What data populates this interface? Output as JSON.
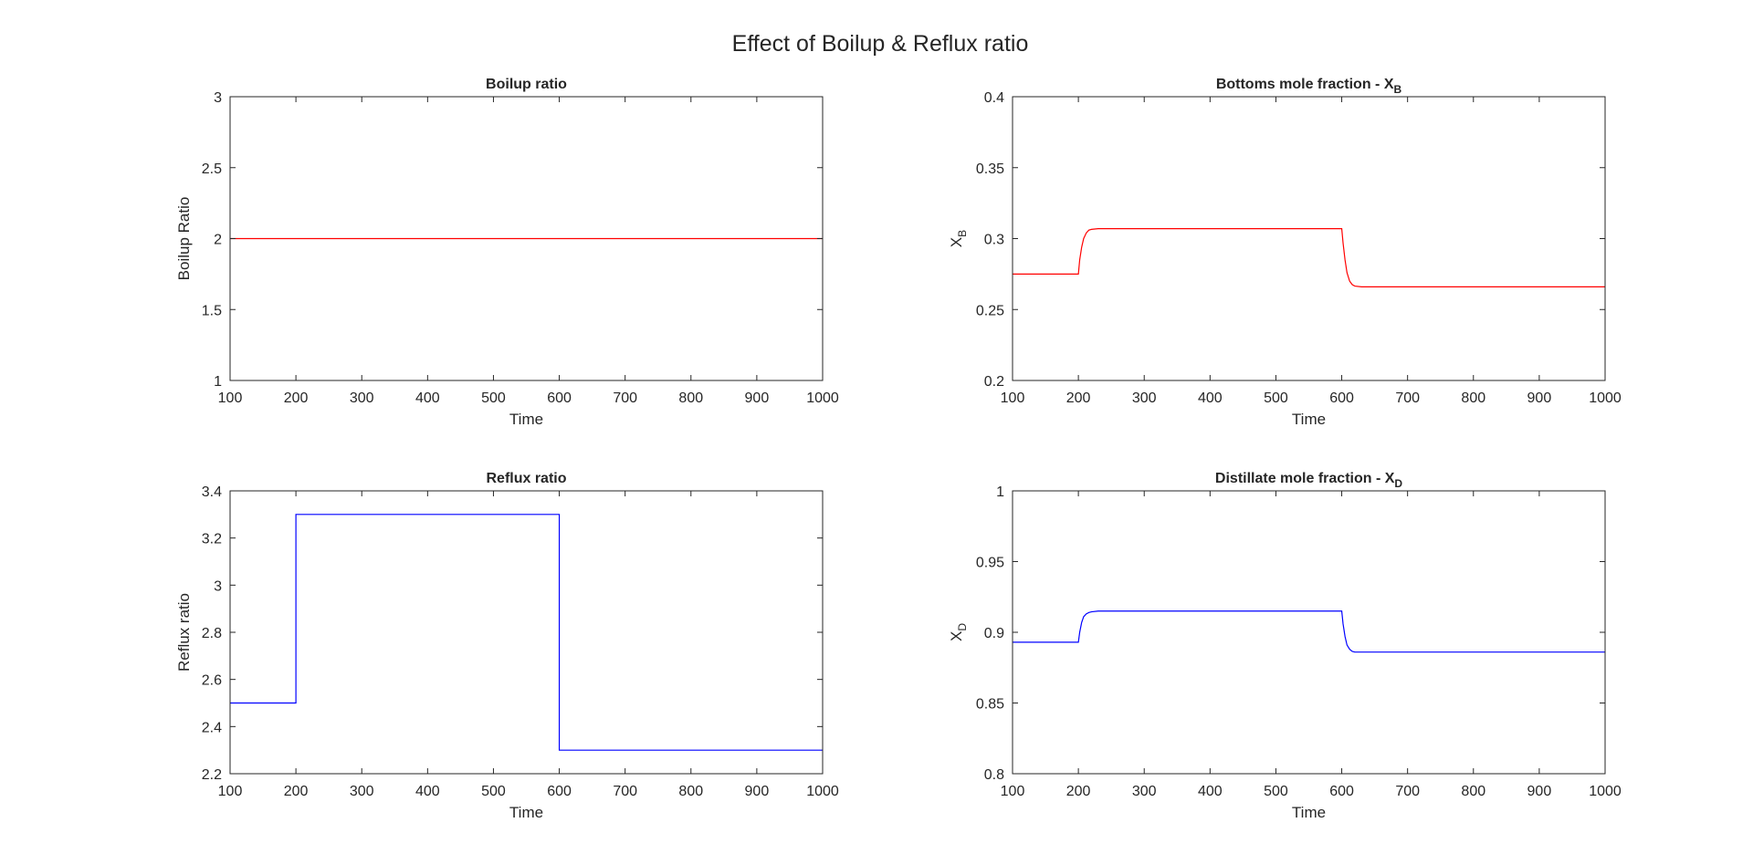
{
  "figure": {
    "suptitle": "Effect of Boilup & Reflux ratio"
  },
  "chart_data": [
    {
      "type": "line",
      "title": "Boilup ratio",
      "xlabel": "Time",
      "ylabel": "Boilup Ratio",
      "xlim": [
        100,
        1000
      ],
      "ylim": [
        1,
        3
      ],
      "xticks": [
        100,
        200,
        300,
        400,
        500,
        600,
        700,
        800,
        900,
        1000
      ],
      "yticks": [
        1,
        1.5,
        2,
        2.5,
        3
      ],
      "series": [
        {
          "color": "#ff0000",
          "x": [
            100,
            1000
          ],
          "y": [
            2,
            2
          ]
        }
      ]
    },
    {
      "type": "line",
      "title": "Bottoms mole fraction - X",
      "title_subscript": "B",
      "xlabel": "Time",
      "ylabel": "X",
      "ylabel_subscript": "B",
      "xlim": [
        100,
        1000
      ],
      "ylim": [
        0.2,
        0.4
      ],
      "xticks": [
        100,
        200,
        300,
        400,
        500,
        600,
        700,
        800,
        900,
        1000
      ],
      "yticks": [
        0.2,
        0.25,
        0.3,
        0.35,
        0.4
      ],
      "series": [
        {
          "color": "#ff0000",
          "x": [
            100,
            200,
            202,
            205,
            208,
            212,
            216,
            220,
            230,
            250,
            600,
            602,
            605,
            608,
            612,
            616,
            620,
            630,
            650,
            1000
          ],
          "y": [
            0.275,
            0.275,
            0.285,
            0.294,
            0.3,
            0.304,
            0.306,
            0.3065,
            0.307,
            0.307,
            0.307,
            0.297,
            0.285,
            0.276,
            0.27,
            0.2675,
            0.2665,
            0.266,
            0.266,
            0.266
          ]
        }
      ]
    },
    {
      "type": "line",
      "title": "Reflux ratio",
      "xlabel": "Time",
      "ylabel": "Reflux ratio",
      "xlim": [
        100,
        1000
      ],
      "ylim": [
        2.2,
        3.4
      ],
      "xticks": [
        100,
        200,
        300,
        400,
        500,
        600,
        700,
        800,
        900,
        1000
      ],
      "yticks": [
        2.2,
        2.4,
        2.6,
        2.8,
        3,
        3.2,
        3.4
      ],
      "series": [
        {
          "color": "#0000ff",
          "x": [
            100,
            200,
            200,
            600,
            600,
            1000
          ],
          "y": [
            2.5,
            2.5,
            3.3,
            3.3,
            2.3,
            2.3
          ]
        }
      ]
    },
    {
      "type": "line",
      "title": "Distillate mole fraction - X",
      "title_subscript": "D",
      "xlabel": "Time",
      "ylabel": "X",
      "ylabel_subscript": "D",
      "xlim": [
        100,
        1000
      ],
      "ylim": [
        0.8,
        1
      ],
      "xticks": [
        100,
        200,
        300,
        400,
        500,
        600,
        700,
        800,
        900,
        1000
      ],
      "yticks": [
        0.8,
        0.85,
        0.9,
        0.95,
        1
      ],
      "series": [
        {
          "color": "#0000ff",
          "x": [
            100,
            200,
            202,
            205,
            208,
            212,
            216,
            220,
            230,
            250,
            600,
            602,
            605,
            608,
            612,
            616,
            620,
            630,
            650,
            1000
          ],
          "y": [
            0.893,
            0.893,
            0.9,
            0.907,
            0.911,
            0.913,
            0.914,
            0.9145,
            0.915,
            0.915,
            0.915,
            0.906,
            0.897,
            0.891,
            0.888,
            0.8865,
            0.886,
            0.886,
            0.886,
            0.886
          ]
        }
      ]
    }
  ]
}
